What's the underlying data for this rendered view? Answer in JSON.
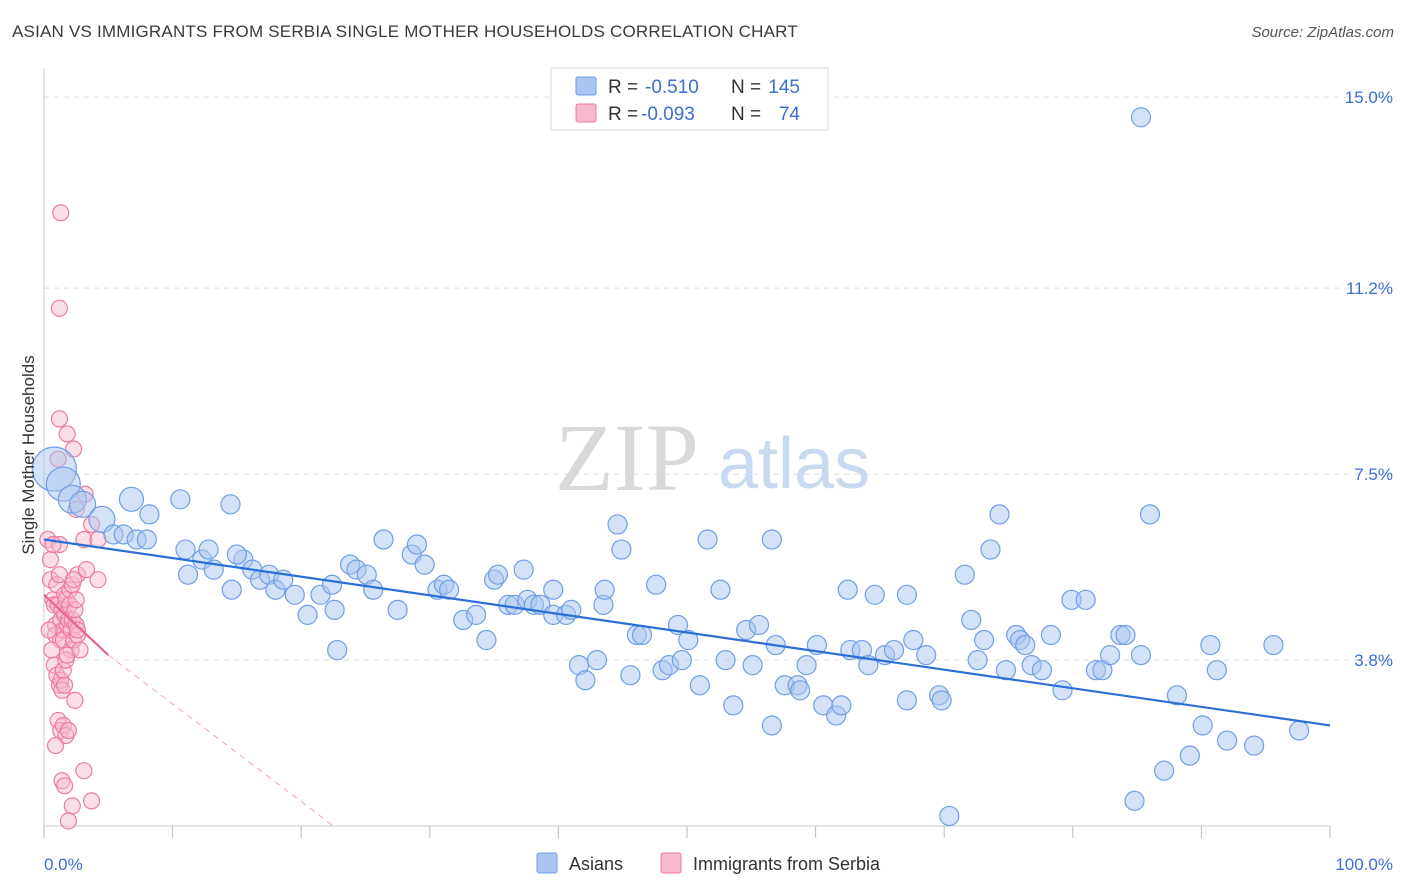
{
  "title": "ASIAN VS IMMIGRANTS FROM SERBIA SINGLE MOTHER HOUSEHOLDS CORRELATION CHART",
  "source": "Source: ZipAtlas.com",
  "watermark": {
    "zip": "ZIP",
    "atlas": "atlas"
  },
  "colors": {
    "asian": "#6f9fe6",
    "asian_fill": "#aac6f0",
    "asian_line": "#2b6fd6",
    "serbia": "#ee7aa2",
    "serbia_fill": "#f6b8cd",
    "serbia_line": "#e8648f",
    "tick_text": "#3b6fd0",
    "grid": "#dddddd"
  },
  "legend": {
    "rows": [
      {
        "r_label": "R =",
        "r_value": "-0.510",
        "n_label": "N =",
        "n_value": "145"
      },
      {
        "r_label": "R =",
        "r_value": "-0.093",
        "n_label": "N =",
        "n_value": "74"
      }
    ]
  },
  "bottom_legend": [
    "Asians",
    "Immigrants from Serbia"
  ],
  "chart_data": {
    "type": "scatter",
    "title": "ASIAN VS IMMIGRANTS FROM SERBIA SINGLE MOTHER HOUSEHOLDS CORRELATION CHART",
    "xlabel": "",
    "ylabel": "Single Mother Households",
    "xlim": [
      0,
      100
    ],
    "ylim": [
      0.5,
      15.7
    ],
    "y_ticks": [
      3.8,
      7.5,
      11.2,
      15.0
    ],
    "y_tick_labels": [
      "3.8%",
      "7.5%",
      "11.2%",
      "15.0%"
    ],
    "x_tick_labels": [
      "0.0%",
      "100.0%"
    ],
    "grid": true,
    "legend_position": "top-center",
    "series": [
      {
        "name": "Asians",
        "trend": {
          "x": [
            0,
            100
          ],
          "y": [
            6.2,
            2.5
          ]
        },
        "points": [
          [
            0.8,
            7.6
          ],
          [
            1.5,
            7.3
          ],
          [
            2.2,
            7.0
          ],
          [
            3.0,
            6.9
          ],
          [
            4.5,
            6.6
          ],
          [
            6.8,
            7.0
          ],
          [
            5.4,
            6.3
          ],
          [
            6.2,
            6.3
          ],
          [
            7.2,
            6.2
          ],
          [
            8.2,
            6.7
          ],
          [
            8.0,
            6.2
          ],
          [
            10.6,
            7.0
          ],
          [
            14.5,
            6.9
          ],
          [
            11.2,
            5.5
          ],
          [
            12.3,
            5.8
          ],
          [
            13.2,
            5.6
          ],
          [
            11.0,
            6.0
          ],
          [
            12.8,
            6.0
          ],
          [
            14.6,
            5.2
          ],
          [
            15.5,
            5.8
          ],
          [
            16.2,
            5.6
          ],
          [
            16.8,
            5.4
          ],
          [
            17.5,
            5.5
          ],
          [
            15.0,
            5.9
          ],
          [
            18.0,
            5.2
          ],
          [
            18.6,
            5.4
          ],
          [
            19.5,
            5.1
          ],
          [
            20.5,
            4.7
          ],
          [
            21.5,
            5.1
          ],
          [
            22.4,
            5.3
          ],
          [
            22.6,
            4.8
          ],
          [
            23.8,
            5.7
          ],
          [
            24.3,
            5.6
          ],
          [
            25.1,
            5.5
          ],
          [
            25.6,
            5.2
          ],
          [
            26.4,
            6.2
          ],
          [
            22.8,
            4.0
          ],
          [
            27.5,
            4.8
          ],
          [
            28.6,
            5.9
          ],
          [
            29.0,
            6.1
          ],
          [
            29.6,
            5.7
          ],
          [
            30.6,
            5.2
          ],
          [
            31.1,
            5.3
          ],
          [
            31.5,
            5.2
          ],
          [
            32.6,
            4.6
          ],
          [
            33.6,
            4.7
          ],
          [
            34.4,
            4.2
          ],
          [
            35.0,
            5.4
          ],
          [
            35.3,
            5.5
          ],
          [
            36.1,
            4.9
          ],
          [
            36.6,
            4.9
          ],
          [
            37.3,
            5.6
          ],
          [
            37.6,
            5.0
          ],
          [
            38.1,
            4.9
          ],
          [
            38.6,
            4.9
          ],
          [
            39.6,
            5.2
          ],
          [
            39.6,
            4.7
          ],
          [
            40.6,
            4.7
          ],
          [
            41.0,
            4.8
          ],
          [
            41.6,
            3.7
          ],
          [
            42.1,
            3.4
          ],
          [
            43.0,
            3.8
          ],
          [
            43.5,
            4.9
          ],
          [
            43.6,
            5.2
          ],
          [
            44.6,
            6.5
          ],
          [
            44.9,
            6.0
          ],
          [
            45.6,
            3.5
          ],
          [
            46.1,
            4.3
          ],
          [
            46.5,
            4.3
          ],
          [
            47.6,
            5.3
          ],
          [
            48.1,
            3.6
          ],
          [
            48.6,
            3.7
          ],
          [
            49.3,
            4.5
          ],
          [
            49.6,
            3.8
          ],
          [
            50.1,
            4.2
          ],
          [
            51.0,
            3.3
          ],
          [
            51.6,
            6.2
          ],
          [
            52.6,
            5.2
          ],
          [
            53.0,
            3.8
          ],
          [
            53.6,
            2.9
          ],
          [
            54.6,
            4.4
          ],
          [
            55.1,
            3.7
          ],
          [
            55.6,
            4.5
          ],
          [
            56.6,
            2.5
          ],
          [
            56.6,
            6.2
          ],
          [
            56.9,
            4.1
          ],
          [
            57.6,
            3.3
          ],
          [
            58.6,
            3.3
          ],
          [
            58.8,
            3.2
          ],
          [
            59.3,
            3.7
          ],
          [
            60.1,
            4.1
          ],
          [
            60.6,
            2.9
          ],
          [
            61.6,
            2.7
          ],
          [
            62.0,
            2.9
          ],
          [
            62.5,
            5.2
          ],
          [
            62.7,
            4.0
          ],
          [
            63.6,
            4.0
          ],
          [
            64.1,
            3.7
          ],
          [
            64.6,
            5.1
          ],
          [
            65.4,
            3.9
          ],
          [
            66.1,
            4.0
          ],
          [
            67.1,
            5.1
          ],
          [
            67.1,
            3.0
          ],
          [
            67.6,
            4.2
          ],
          [
            68.6,
            3.9
          ],
          [
            69.6,
            3.1
          ],
          [
            69.8,
            3.0
          ],
          [
            70.4,
            0.7
          ],
          [
            71.6,
            5.5
          ],
          [
            72.1,
            4.6
          ],
          [
            72.6,
            3.8
          ],
          [
            73.1,
            4.2
          ],
          [
            73.6,
            6.0
          ],
          [
            74.3,
            6.7
          ],
          [
            74.8,
            3.6
          ],
          [
            75.6,
            4.3
          ],
          [
            75.9,
            4.2
          ],
          [
            76.3,
            4.1
          ],
          [
            76.8,
            3.7
          ],
          [
            77.6,
            3.6
          ],
          [
            78.3,
            4.3
          ],
          [
            79.2,
            3.2
          ],
          [
            79.9,
            5.0
          ],
          [
            81.0,
            5.0
          ],
          [
            81.8,
            3.6
          ],
          [
            82.3,
            3.6
          ],
          [
            82.9,
            3.9
          ],
          [
            83.7,
            4.3
          ],
          [
            84.1,
            4.3
          ],
          [
            84.8,
            1.0
          ],
          [
            85.3,
            3.9
          ],
          [
            86.0,
            6.7
          ],
          [
            87.1,
            1.6
          ],
          [
            88.1,
            3.1
          ],
          [
            89.1,
            1.9
          ],
          [
            90.1,
            2.5
          ],
          [
            90.7,
            4.1
          ],
          [
            91.2,
            3.6
          ],
          [
            92.0,
            2.2
          ],
          [
            94.1,
            2.1
          ],
          [
            95.6,
            4.1
          ],
          [
            97.6,
            2.4
          ],
          [
            85.3,
            14.6
          ]
        ]
      },
      {
        "name": "Immigrants from Serbia",
        "trend": {
          "x": [
            0,
            5
          ],
          "y": [
            5.1,
            3.9
          ]
        },
        "trend_extended": {
          "x": [
            5,
            22.5
          ],
          "y": [
            3.9,
            0.5
          ]
        },
        "points": [
          [
            0.3,
            6.2
          ],
          [
            0.5,
            5.4
          ],
          [
            0.7,
            5.0
          ],
          [
            0.8,
            4.9
          ],
          [
            0.9,
            4.5
          ],
          [
            0.9,
            4.3
          ],
          [
            1.0,
            5.3
          ],
          [
            1.1,
            4.9
          ],
          [
            1.2,
            5.5
          ],
          [
            1.2,
            6.1
          ],
          [
            1.3,
            4.6
          ],
          [
            1.3,
            4.2
          ],
          [
            1.4,
            4.8
          ],
          [
            1.5,
            4.4
          ],
          [
            1.5,
            4.2
          ],
          [
            1.6,
            5.1
          ],
          [
            1.6,
            4.7
          ],
          [
            1.7,
            5.0
          ],
          [
            1.8,
            4.5
          ],
          [
            1.9,
            4.6
          ],
          [
            2.0,
            4.9
          ],
          [
            2.0,
            5.2
          ],
          [
            2.1,
            4.4
          ],
          [
            2.1,
            4.0
          ],
          [
            2.2,
            4.6
          ],
          [
            2.2,
            5.3
          ],
          [
            2.3,
            4.2
          ],
          [
            2.4,
            4.8
          ],
          [
            2.5,
            5.0
          ],
          [
            2.5,
            4.5
          ],
          [
            2.6,
            5.5
          ],
          [
            2.6,
            4.3
          ],
          [
            0.6,
            4.0
          ],
          [
            0.8,
            3.7
          ],
          [
            1.0,
            3.5
          ],
          [
            1.2,
            3.3
          ],
          [
            1.3,
            3.4
          ],
          [
            1.4,
            3.2
          ],
          [
            1.5,
            3.6
          ],
          [
            1.6,
            3.3
          ],
          [
            1.7,
            3.8
          ],
          [
            1.8,
            3.9
          ],
          [
            1.1,
            2.6
          ],
          [
            1.3,
            2.4
          ],
          [
            1.5,
            2.5
          ],
          [
            1.7,
            2.3
          ],
          [
            1.9,
            2.4
          ],
          [
            0.9,
            2.1
          ],
          [
            1.4,
            1.4
          ],
          [
            1.6,
            1.3
          ],
          [
            2.2,
            0.9
          ],
          [
            3.1,
            6.2
          ],
          [
            3.7,
            6.5
          ],
          [
            3.2,
            7.1
          ],
          [
            2.5,
            6.8
          ],
          [
            1.1,
            7.8
          ],
          [
            1.8,
            8.3
          ],
          [
            2.3,
            8.0
          ],
          [
            1.2,
            8.6
          ],
          [
            2.3,
            5.4
          ],
          [
            1.3,
            12.7
          ],
          [
            1.2,
            10.8
          ],
          [
            4.2,
            6.2
          ],
          [
            3.3,
            5.6
          ],
          [
            4.2,
            5.4
          ],
          [
            2.4,
            3.0
          ],
          [
            3.1,
            1.6
          ],
          [
            3.7,
            1.0
          ],
          [
            2.6,
            4.4
          ],
          [
            2.8,
            4.0
          ],
          [
            0.4,
            4.4
          ],
          [
            0.5,
            5.8
          ],
          [
            0.7,
            6.1
          ],
          [
            1.9,
            0.6
          ]
        ]
      }
    ]
  }
}
